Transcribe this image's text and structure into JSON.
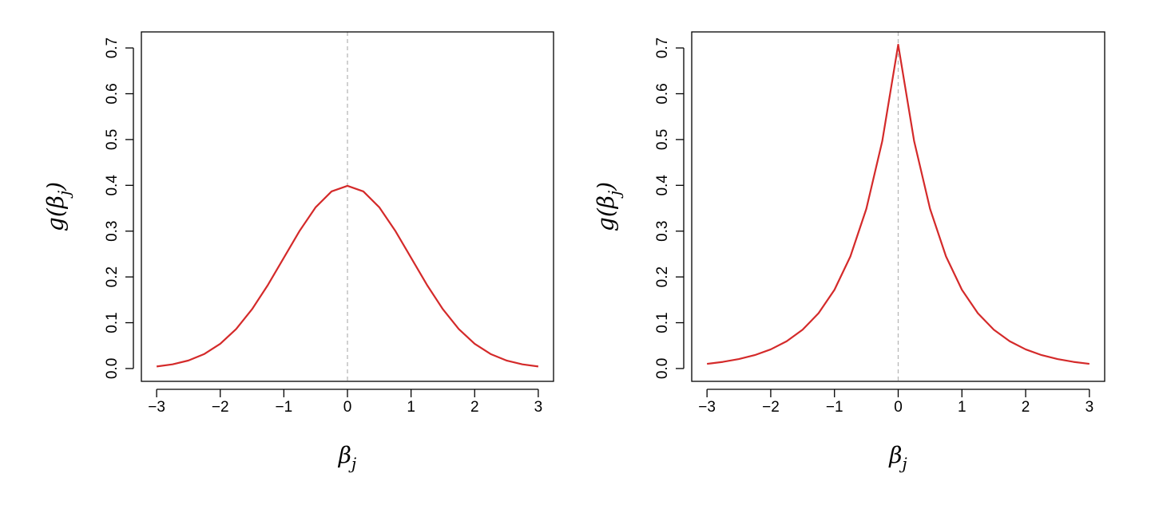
{
  "chart_data": [
    {
      "type": "line",
      "x": [
        -3,
        -2.75,
        -2.5,
        -2.25,
        -2,
        -1.75,
        -1.5,
        -1.25,
        -1,
        -0.75,
        -0.5,
        -0.25,
        0,
        0.25,
        0.5,
        0.75,
        1,
        1.25,
        1.5,
        1.75,
        2,
        2.25,
        2.5,
        2.75,
        3
      ],
      "values": [
        0.0044,
        0.0091,
        0.0175,
        0.0317,
        0.054,
        0.0863,
        0.1295,
        0.1826,
        0.242,
        0.3011,
        0.3521,
        0.3867,
        0.3989,
        0.3867,
        0.3521,
        0.3011,
        0.242,
        0.1826,
        0.1295,
        0.0863,
        0.054,
        0.0317,
        0.0175,
        0.0091,
        0.0044
      ],
      "color": "#d42a2a",
      "vline": 0,
      "xlabel": [
        "β",
        "j"
      ],
      "ylabel": [
        "g(β",
        "j",
        ")"
      ],
      "xlim": [
        -3.24,
        3.24
      ],
      "ylim": [
        -0.028,
        0.735
      ],
      "xticks": [
        {
          "value": -3,
          "label": "−3"
        },
        {
          "value": -2,
          "label": "−2"
        },
        {
          "value": -1,
          "label": "−1"
        },
        0,
        1,
        2,
        3
      ],
      "yticks": [
        {
          "value": 0,
          "label": "0.0"
        },
        0.1,
        0.2,
        0.3,
        0.4,
        0.5,
        0.6,
        0.7
      ]
    },
    {
      "type": "line",
      "x": [
        -3,
        -2.75,
        -2.5,
        -2.25,
        -2,
        -1.75,
        -1.5,
        -1.25,
        -1,
        -0.75,
        -0.5,
        -0.25,
        0,
        0.25,
        0.5,
        0.75,
        1,
        1.25,
        1.5,
        1.75,
        2,
        2.25,
        2.5,
        2.75,
        3
      ],
      "values": [
        0.0102,
        0.0145,
        0.0206,
        0.0293,
        0.0418,
        0.0595,
        0.0848,
        0.1207,
        0.1719,
        0.2448,
        0.3487,
        0.4965,
        0.7071,
        0.4965,
        0.3487,
        0.2448,
        0.1719,
        0.1207,
        0.0848,
        0.0595,
        0.0418,
        0.0293,
        0.0206,
        0.0145,
        0.0102
      ],
      "color": "#d42a2a",
      "vline": 0,
      "xlabel": [
        "β",
        "j"
      ],
      "ylabel": [
        "g(β",
        "j",
        ")"
      ],
      "xlim": [
        -3.24,
        3.24
      ],
      "ylim": [
        -0.028,
        0.735
      ],
      "xticks": [
        {
          "value": -3,
          "label": "−3"
        },
        {
          "value": -2,
          "label": "−2"
        },
        {
          "value": -1,
          "label": "−1"
        },
        0,
        1,
        2,
        3
      ],
      "yticks": [
        {
          "value": 0,
          "label": "0.0"
        },
        0.1,
        0.2,
        0.3,
        0.4,
        0.5,
        0.6,
        0.7
      ]
    }
  ]
}
